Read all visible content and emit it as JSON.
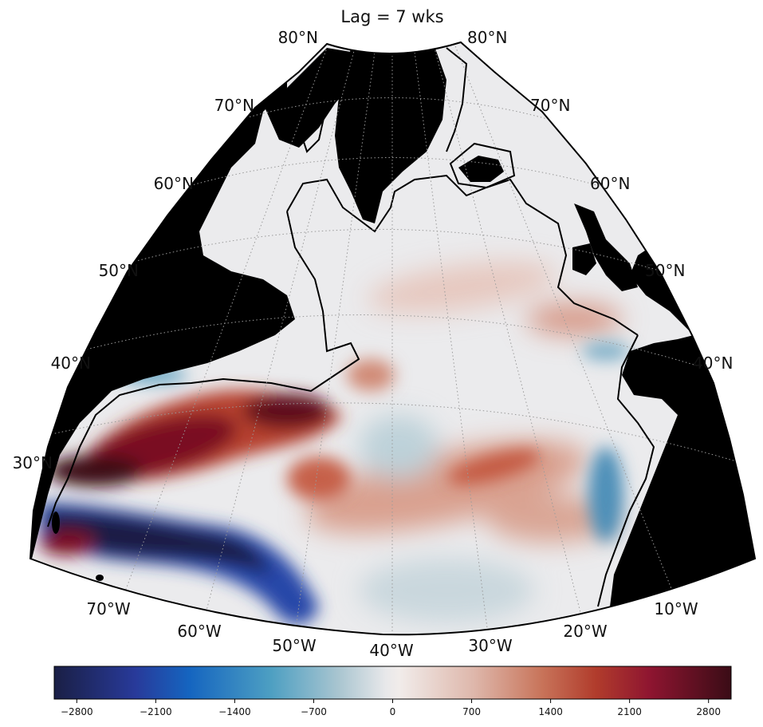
{
  "title": "Lag = 7 wks",
  "lat_labels": [
    "30°N",
    "40°N",
    "50°N",
    "60°N",
    "70°N",
    "80°N"
  ],
  "lon_labels": [
    "70°W",
    "60°W",
    "50°W",
    "40°W",
    "30°W",
    "20°W",
    "10°W"
  ],
  "colorbar": {
    "range": [
      -3000,
      3000
    ],
    "ticks": [
      "−2800",
      "−2100",
      "−1400",
      "−700",
      "0",
      "700",
      "1400",
      "2100",
      "2800"
    ],
    "tick_values": [
      -2800,
      -2100,
      -1400,
      -700,
      0,
      700,
      1400,
      2100,
      2800
    ],
    "stops": [
      "#1a1f45",
      "#283a9a",
      "#1565c0",
      "#4d9fc2",
      "#a9c5d0",
      "#e8e8ea",
      "#f1ecea",
      "#deb7ab",
      "#c8745a",
      "#b13c2c",
      "#8e1530",
      "#3a0c16"
    ]
  },
  "colors": {
    "land": "#000000",
    "ocean_neutral": "#ebebed",
    "coastline": "#000000",
    "gridline": "#9a9a9a"
  }
}
